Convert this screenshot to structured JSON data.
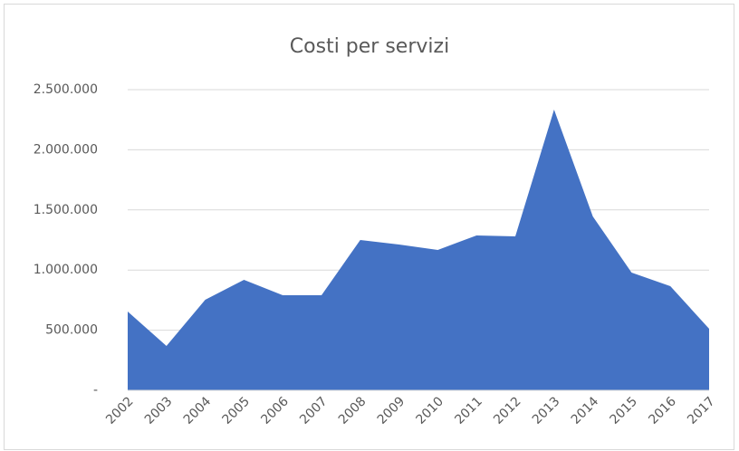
{
  "chart_data": {
    "type": "area",
    "title": "Costi per servizi",
    "categories": [
      "2002",
      "2003",
      "2004",
      "2005",
      "2006",
      "2007",
      "2008",
      "2009",
      "2010",
      "2011",
      "2012",
      "2013",
      "2014",
      "2015",
      "2016",
      "2017"
    ],
    "series": [
      {
        "name": "Costi per servizi",
        "color": "#4472c4",
        "values": [
          655000,
          369000,
          753000,
          919000,
          791000,
          791000,
          1250000,
          1212000,
          1167000,
          1288000,
          1280000,
          2334000,
          1446000,
          979000,
          866000,
          512000
        ]
      }
    ],
    "ylim": [
      0,
      2500000
    ],
    "yticks": [
      {
        "value": 0,
        "label": "-"
      },
      {
        "value": 500000,
        "label": "500.000"
      },
      {
        "value": 1000000,
        "label": "1.000.000"
      },
      {
        "value": 1500000,
        "label": "1.500.000"
      },
      {
        "value": 2000000,
        "label": "2.000.000"
      },
      {
        "value": 2500000,
        "label": "2.500.000"
      }
    ],
    "grid": true
  }
}
